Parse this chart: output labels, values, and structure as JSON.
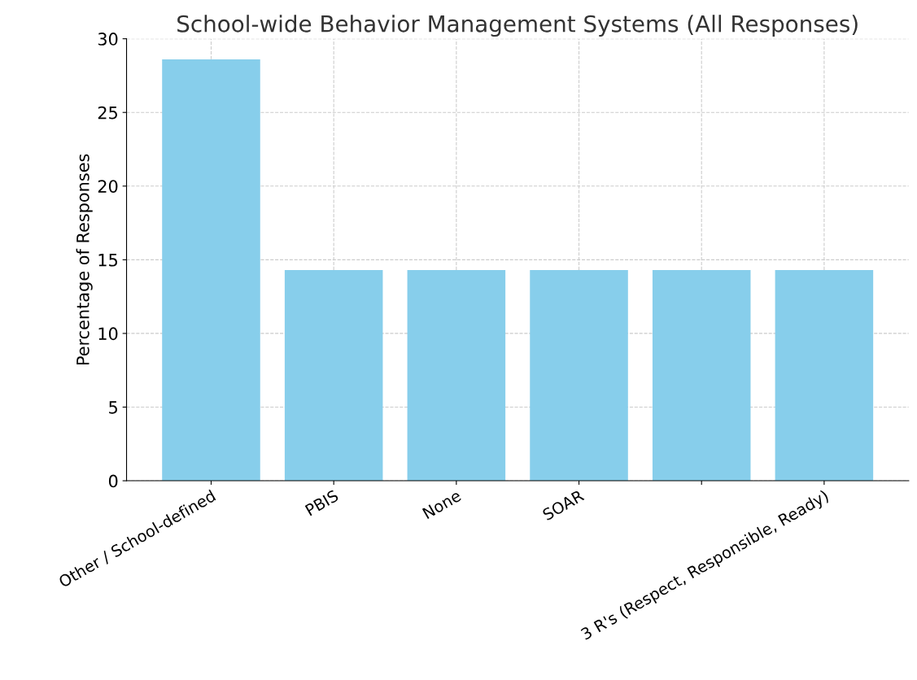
{
  "chart_data": {
    "type": "bar",
    "title": "School-wide Behavior Management Systems (All Responses)",
    "ylabel": "Percentage of Responses",
    "categories": [
      "Other / School-defined",
      "PBIS",
      "None",
      "SOAR",
      null,
      "3 R's (Respect, Responsible, Ready)"
    ],
    "values": [
      28.6,
      14.3,
      14.3,
      14.3,
      14.3,
      14.3
    ],
    "color": "#87ceeb",
    "ylim": [
      0,
      30
    ],
    "yticks": [
      0,
      5,
      10,
      15,
      20,
      25,
      30
    ],
    "grid": true
  }
}
